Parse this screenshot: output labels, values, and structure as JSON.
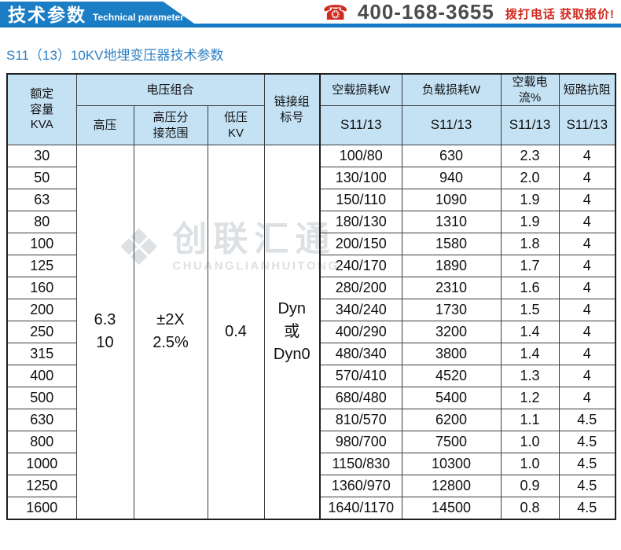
{
  "header": {
    "banner_title": "技术参数",
    "banner_subtitle": "Technical parameter",
    "phone_icon": "phone-icon",
    "phone_number": "400-168-3655",
    "phone_cta": "拨打电话 获取报价!"
  },
  "page": {
    "title": "S11（13）10KV地埋变压器技术参数"
  },
  "watermark": {
    "logo_glyph": "❖",
    "name": "创联汇通",
    "latin": "CHUANGLIANHUITONG"
  },
  "colors": {
    "banner_blue": "#1b7dc4",
    "line_blue": "#1478c2",
    "title_blue": "#2e80c4",
    "header_fill": "#c5e2f5",
    "cta_red": "#d02a1e",
    "phone_gray": "#4c4c4c",
    "border_dark": "#1f1f1f",
    "watermark_gray": "#dde1e4"
  },
  "table": {
    "header": {
      "capacity": "额定\n容量\nKVA",
      "voltage_group": "电压组合",
      "hv": "高压",
      "tap": "高压分\n接范围",
      "lv": "低压\nKV",
      "vector": "链接组\n标号",
      "noload_loss": "空载损耗W",
      "load_loss": "负载损耗W",
      "noload_current": "空载电流%",
      "impedance": "短路抗阻",
      "model": "S11/13"
    },
    "merged": {
      "hv": "6.3\n10",
      "tap": "±2X\n2.5%",
      "lv": "0.4",
      "vector": "Dyn\n或\nDyn0"
    },
    "rows": [
      {
        "capacity": "30",
        "noload_loss": "100/80",
        "load_loss": "630",
        "current": "2.3",
        "impedance": "4"
      },
      {
        "capacity": "50",
        "noload_loss": "130/100",
        "load_loss": "940",
        "current": "2.0",
        "impedance": "4"
      },
      {
        "capacity": "63",
        "noload_loss": "150/110",
        "load_loss": "1090",
        "current": "1.9",
        "impedance": "4"
      },
      {
        "capacity": "80",
        "noload_loss": "180/130",
        "load_loss": "1310",
        "current": "1.9",
        "impedance": "4"
      },
      {
        "capacity": "100",
        "noload_loss": "200/150",
        "load_loss": "1580",
        "current": "1.8",
        "impedance": "4"
      },
      {
        "capacity": "125",
        "noload_loss": "240/170",
        "load_loss": "1890",
        "current": "1.7",
        "impedance": "4"
      },
      {
        "capacity": "160",
        "noload_loss": "280/200",
        "load_loss": "2310",
        "current": "1.6",
        "impedance": "4"
      },
      {
        "capacity": "200",
        "noload_loss": "340/240",
        "load_loss": "1730",
        "current": "1.5",
        "impedance": "4"
      },
      {
        "capacity": "250",
        "noload_loss": "400/290",
        "load_loss": "3200",
        "current": "1.4",
        "impedance": "4"
      },
      {
        "capacity": "315",
        "noload_loss": "480/340",
        "load_loss": "3800",
        "current": "1.4",
        "impedance": "4"
      },
      {
        "capacity": "400",
        "noload_loss": "570/410",
        "load_loss": "4520",
        "current": "1.3",
        "impedance": "4"
      },
      {
        "capacity": "500",
        "noload_loss": "680/480",
        "load_loss": "5400",
        "current": "1.2",
        "impedance": "4"
      },
      {
        "capacity": "630",
        "noload_loss": "810/570",
        "load_loss": "6200",
        "current": "1.1",
        "impedance": "4.5"
      },
      {
        "capacity": "800",
        "noload_loss": "980/700",
        "load_loss": "7500",
        "current": "1.0",
        "impedance": "4.5"
      },
      {
        "capacity": "1000",
        "noload_loss": "1150/830",
        "load_loss": "10300",
        "current": "1.0",
        "impedance": "4.5"
      },
      {
        "capacity": "1250",
        "noload_loss": "1360/970",
        "load_loss": "12800",
        "current": "0.9",
        "impedance": "4.5"
      },
      {
        "capacity": "1600",
        "noload_loss": "1640/1170",
        "load_loss": "14500",
        "current": "0.8",
        "impedance": "4.5"
      }
    ]
  }
}
